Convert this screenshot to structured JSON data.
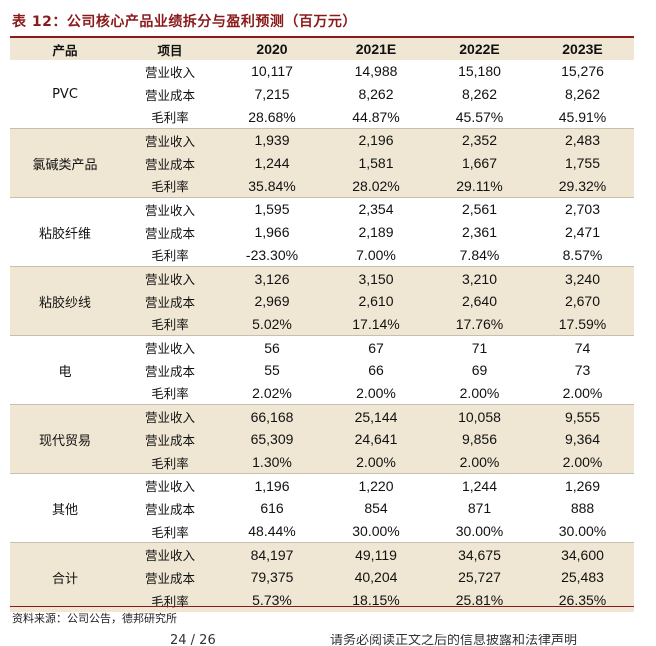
{
  "title": "表 12：公司核心产品业绩拆分与盈利预测（百万元）",
  "table": {
    "headers": [
      "产品",
      "项目",
      "2020",
      "2021E",
      "2022E",
      "2023E"
    ],
    "groups": [
      {
        "product": "PVC",
        "rows": [
          {
            "item": "营业收入",
            "values": [
              "10,117",
              "14,988",
              "15,180",
              "15,276"
            ]
          },
          {
            "item": "营业成本",
            "values": [
              "7,215",
              "8,262",
              "8,262",
              "8,262"
            ]
          },
          {
            "item": "毛利率",
            "values": [
              "28.68%",
              "44.87%",
              "45.57%",
              "45.91%"
            ]
          }
        ]
      },
      {
        "product": "氯碱类产品",
        "rows": [
          {
            "item": "营业收入",
            "values": [
              "1,939",
              "2,196",
              "2,352",
              "2,483"
            ]
          },
          {
            "item": "营业成本",
            "values": [
              "1,244",
              "1,581",
              "1,667",
              "1,755"
            ]
          },
          {
            "item": "毛利率",
            "values": [
              "35.84%",
              "28.02%",
              "29.11%",
              "29.32%"
            ]
          }
        ]
      },
      {
        "product": "粘胶纤维",
        "rows": [
          {
            "item": "营业收入",
            "values": [
              "1,595",
              "2,354",
              "2,561",
              "2,703"
            ]
          },
          {
            "item": "营业成本",
            "values": [
              "1,966",
              "2,189",
              "2,361",
              "2,471"
            ]
          },
          {
            "item": "毛利率",
            "values": [
              "-23.30%",
              "7.00%",
              "7.84%",
              "8.57%"
            ]
          }
        ]
      },
      {
        "product": "粘胶纱线",
        "rows": [
          {
            "item": "营业收入",
            "values": [
              "3,126",
              "3,150",
              "3,210",
              "3,240"
            ]
          },
          {
            "item": "营业成本",
            "values": [
              "2,969",
              "2,610",
              "2,640",
              "2,670"
            ]
          },
          {
            "item": "毛利率",
            "values": [
              "5.02%",
              "17.14%",
              "17.76%",
              "17.59%"
            ]
          }
        ]
      },
      {
        "product": "电",
        "rows": [
          {
            "item": "营业收入",
            "values": [
              "56",
              "67",
              "71",
              "74"
            ]
          },
          {
            "item": "营业成本",
            "values": [
              "55",
              "66",
              "69",
              "73"
            ]
          },
          {
            "item": "毛利率",
            "values": [
              "2.02%",
              "2.00%",
              "2.00%",
              "2.00%"
            ]
          }
        ]
      },
      {
        "product": "现代贸易",
        "rows": [
          {
            "item": "营业收入",
            "values": [
              "66,168",
              "25,144",
              "10,058",
              "9,555"
            ]
          },
          {
            "item": "营业成本",
            "values": [
              "65,309",
              "24,641",
              "9,856",
              "9,364"
            ]
          },
          {
            "item": "毛利率",
            "values": [
              "1.30%",
              "2.00%",
              "2.00%",
              "2.00%"
            ]
          }
        ]
      },
      {
        "product": "其他",
        "rows": [
          {
            "item": "营业收入",
            "values": [
              "1,196",
              "1,220",
              "1,244",
              "1,269"
            ]
          },
          {
            "item": "营业成本",
            "values": [
              "616",
              "854",
              "871",
              "888"
            ]
          },
          {
            "item": "毛利率",
            "values": [
              "48.44%",
              "30.00%",
              "30.00%",
              "30.00%"
            ]
          }
        ]
      },
      {
        "product": "合计",
        "rows": [
          {
            "item": "营业收入",
            "values": [
              "84,197",
              "49,119",
              "34,675",
              "34,600"
            ]
          },
          {
            "item": "营业成本",
            "values": [
              "79,375",
              "40,204",
              "25,727",
              "25,483"
            ]
          },
          {
            "item": "毛利率",
            "values": [
              "5.73%",
              "18.15%",
              "25.81%",
              "26.35%"
            ]
          }
        ]
      }
    ]
  },
  "source": "资料来源：公司公告，德邦研究所",
  "footer": {
    "page": "24 / 26",
    "disclaimer": "请务必阅读正文之后的信息披露和法律声明"
  },
  "colors": {
    "accent": "#8b1a1a",
    "shade": "#efe7d3"
  }
}
